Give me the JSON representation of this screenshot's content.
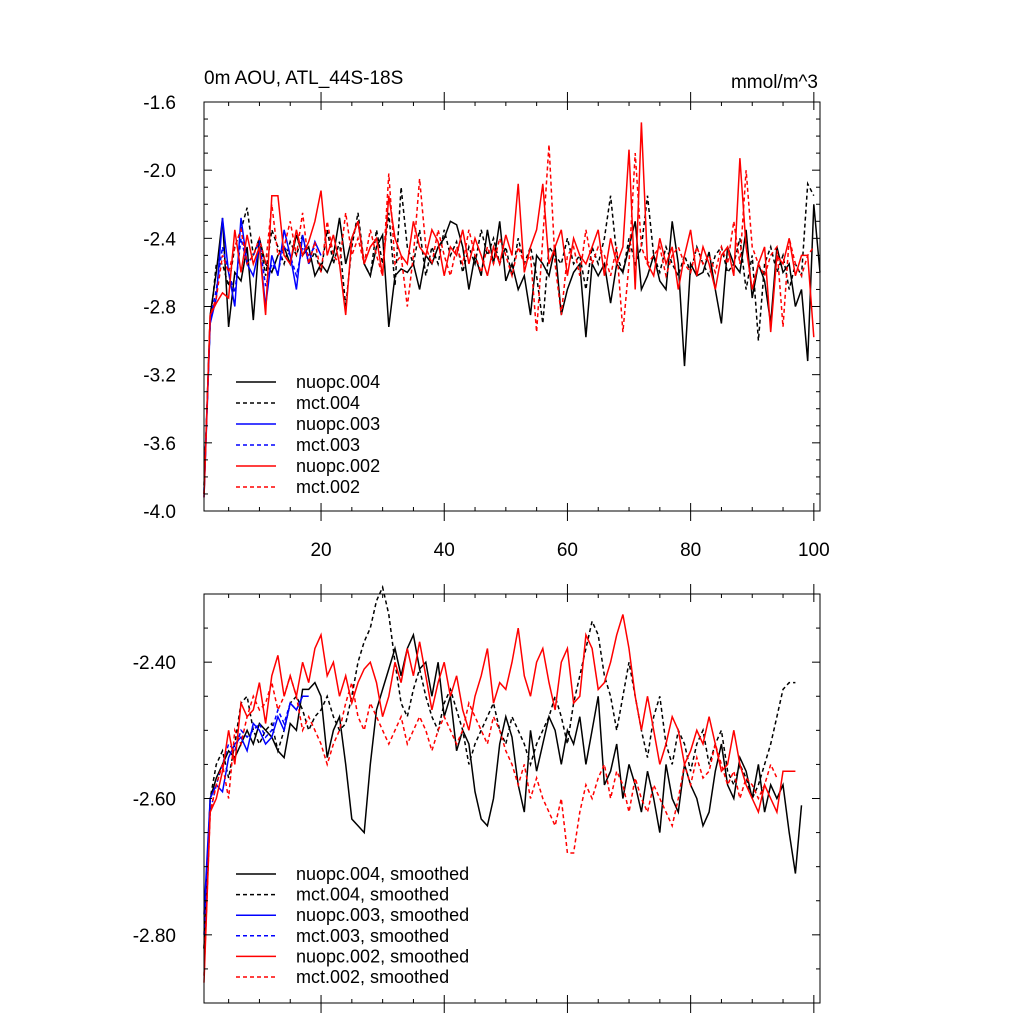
{
  "chart_data": [
    {
      "type": "line",
      "title": "0m AOU, ATL_44S-18S",
      "units": "mmol/m^3",
      "xlim": [
        1,
        101
      ],
      "ylim": [
        -4.0,
        -1.6
      ],
      "xticks": [
        20,
        40,
        60,
        80,
        100
      ],
      "xtick_labels": [
        "20",
        "40",
        "60",
        "80",
        "100"
      ],
      "yticks": [
        -1.6,
        -2.0,
        -2.4,
        -2.8,
        -3.2,
        -3.6,
        -4.0
      ],
      "ytick_labels": [
        "-1.6",
        "-2.0",
        "-2.4",
        "-2.8",
        "-3.2",
        "-3.6",
        "-4.0"
      ],
      "legend_position": "bottom-left",
      "series": [
        {
          "name": "nuopc.004",
          "color": "#000000",
          "dash": "solid",
          "x_start": 1,
          "values": [
            -3.9,
            -2.85,
            -2.6,
            -2.28,
            -2.92,
            -2.6,
            -2.65,
            -2.45,
            -2.88,
            -2.4,
            -2.55,
            -2.6,
            -2.5,
            -2.45,
            -2.55,
            -2.38,
            -2.5,
            -2.45,
            -2.62,
            -2.55,
            -2.6,
            -2.5,
            -2.28,
            -2.55,
            -2.4,
            -2.3,
            -2.55,
            -2.62,
            -2.45,
            -2.38,
            -2.92,
            -2.62,
            -2.58,
            -2.6,
            -2.55,
            -2.7,
            -2.5,
            -2.55,
            -2.45,
            -2.4,
            -2.3,
            -2.32,
            -2.45,
            -2.7,
            -2.5,
            -2.62,
            -2.35,
            -2.55,
            -2.3,
            -2.65,
            -2.55,
            -2.7,
            -2.62,
            -2.85,
            -2.5,
            -2.55,
            -2.62,
            -2.45,
            -2.85,
            -2.7,
            -2.6,
            -2.55,
            -2.98,
            -2.55,
            -2.62,
            -2.55,
            -2.78,
            -2.55,
            -2.6,
            -2.45,
            -2.3,
            -2.7,
            -2.62,
            -2.5,
            -2.65,
            -2.7,
            -2.3,
            -2.55,
            -3.15,
            -2.55,
            -2.62,
            -2.6,
            -2.48,
            -2.7,
            -2.9,
            -2.45,
            -2.55,
            -2.6,
            -2.35,
            -2.75,
            -2.55,
            -2.65,
            -2.9,
            -2.45,
            -2.6,
            -2.55,
            -2.8,
            -2.7,
            -3.12,
            -2.2,
            -2.6
          ]
        },
        {
          "name": "mct.004",
          "color": "#000000",
          "dash": "dashed",
          "x_start": 1,
          "values": [
            -3.85,
            -2.9,
            -2.55,
            -2.55,
            -2.68,
            -2.45,
            -2.35,
            -2.22,
            -2.5,
            -2.4,
            -2.62,
            -2.35,
            -2.45,
            -2.55,
            -2.42,
            -2.5,
            -2.38,
            -2.55,
            -2.48,
            -2.6,
            -2.35,
            -2.55,
            -2.42,
            -2.8,
            -2.45,
            -2.25,
            -2.55,
            -2.62,
            -2.35,
            -2.55,
            -2.25,
            -2.68,
            -2.1,
            -2.45,
            -2.55,
            -2.35,
            -2.62,
            -2.45,
            -2.55,
            -2.35,
            -2.5,
            -2.42,
            -2.6,
            -2.45,
            -2.55,
            -2.35,
            -2.5,
            -2.4,
            -2.55,
            -2.45,
            -2.62,
            -2.4,
            -2.55,
            -2.45,
            -2.62,
            -2.9,
            -2.45,
            -2.5,
            -2.55,
            -2.4,
            -2.55,
            -2.5,
            -2.7,
            -2.45,
            -2.55,
            -2.4,
            -2.15,
            -2.5,
            -2.6,
            -2.4,
            -2.55,
            -2.45,
            -2.15,
            -2.5,
            -2.6,
            -2.45,
            -2.55,
            -2.62,
            -2.5,
            -2.6,
            -2.45,
            -2.55,
            -2.62,
            -2.5,
            -2.45,
            -2.6,
            -2.55,
            -2.4,
            -2.7,
            -2.5,
            -3.0,
            -2.55,
            -2.45,
            -2.6,
            -2.5,
            -2.7,
            -2.55,
            -2.62,
            -2.08,
            -2.15
          ]
        },
        {
          "name": "nuopc.003",
          "color": "#0000ff",
          "dash": "solid",
          "x_start": 1,
          "values": [
            -3.92,
            -2.9,
            -2.75,
            -2.28,
            -2.6,
            -2.8,
            -2.28,
            -2.55,
            -2.62,
            -2.45,
            -2.8,
            -2.5,
            -2.62,
            -2.35,
            -2.5,
            -2.7,
            -2.38,
            -2.55,
            -2.42,
            -2.5
          ]
        },
        {
          "name": "mct.003",
          "color": "#0000ff",
          "dash": "dashed",
          "x_start": 1,
          "values": [
            -3.88,
            -2.88,
            -2.7,
            -2.45,
            -2.6,
            -2.72,
            -2.4,
            -2.55,
            -2.5,
            -2.42,
            -2.68,
            -2.55,
            -2.6,
            -2.45,
            -2.5,
            -2.62,
            -2.45,
            -2.5,
            -2.45
          ]
        },
        {
          "name": "nuopc.002",
          "color": "#ff0000",
          "dash": "solid",
          "x_start": 1,
          "values": [
            -3.92,
            -2.85,
            -2.78,
            -2.72,
            -2.75,
            -2.35,
            -2.6,
            -2.38,
            -2.55,
            -2.45,
            -2.85,
            -2.15,
            -2.15,
            -2.5,
            -2.55,
            -2.35,
            -2.5,
            -2.42,
            -2.3,
            -2.12,
            -2.5,
            -2.38,
            -2.55,
            -2.85,
            -2.4,
            -2.3,
            -2.55,
            -2.45,
            -2.4,
            -2.62,
            -2.15,
            -2.4,
            -2.5,
            -2.55,
            -2.3,
            -2.45,
            -2.5,
            -2.35,
            -2.42,
            -2.62,
            -2.45,
            -2.5,
            -2.35,
            -2.55,
            -2.4,
            -2.5,
            -2.62,
            -2.45,
            -2.55,
            -2.38,
            -2.5,
            -2.08,
            -2.6,
            -2.45,
            -2.35,
            -2.08,
            -2.55,
            -2.45,
            -2.35,
            -2.62,
            -2.4,
            -2.5,
            -2.55,
            -2.45,
            -2.35,
            -2.62,
            -2.4,
            -2.55,
            -2.45,
            -1.88,
            -2.7,
            -1.72,
            -2.55,
            -2.62,
            -2.4,
            -2.55,
            -2.45,
            -2.7,
            -2.5,
            -2.35,
            -2.62,
            -2.45,
            -2.55,
            -2.7,
            -2.5,
            -2.45,
            -2.62,
            -1.93,
            -2.45,
            -2.7,
            -2.55,
            -2.45,
            -2.95,
            -2.5,
            -2.55,
            -2.4,
            -2.62,
            -2.5,
            -2.5,
            -2.98
          ]
        },
        {
          "name": "mct.002",
          "color": "#ff0000",
          "dash": "dashed",
          "x_start": 1,
          "values": [
            -3.9,
            -2.85,
            -2.75,
            -2.5,
            -2.6,
            -2.45,
            -2.35,
            -2.55,
            -2.5,
            -2.4,
            -2.55,
            -2.2,
            -2.5,
            -2.45,
            -2.3,
            -2.5,
            -2.25,
            -2.55,
            -2.42,
            -2.6,
            -2.3,
            -2.5,
            -2.55,
            -2.25,
            -2.5,
            -2.4,
            -2.55,
            -2.35,
            -2.5,
            -2.62,
            -2.02,
            -2.55,
            -2.5,
            -2.8,
            -2.5,
            -2.05,
            -2.45,
            -2.55,
            -2.35,
            -2.5,
            -2.62,
            -2.45,
            -2.55,
            -2.35,
            -2.5,
            -2.6,
            -2.45,
            -2.55,
            -2.4,
            -2.5,
            -2.62,
            -2.45,
            -2.55,
            -2.5,
            -2.95,
            -2.4,
            -1.85,
            -2.55,
            -2.85,
            -2.5,
            -2.45,
            -2.62,
            -2.35,
            -2.55,
            -2.45,
            -2.5,
            -2.62,
            -2.45,
            -2.95,
            -2.55,
            -1.9,
            -2.45,
            -2.55,
            -2.5,
            -2.45,
            -2.62,
            -2.5,
            -2.45,
            -2.55,
            -2.6,
            -2.45,
            -2.55,
            -2.5,
            -2.6,
            -2.45,
            -2.55,
            -2.3,
            -2.55,
            -2.0,
            -2.45,
            -2.55,
            -2.62,
            -2.5,
            -2.45,
            -2.92,
            -2.4,
            -2.55,
            -2.62,
            -2.5,
            -2.45
          ]
        }
      ],
      "legend": [
        "nuopc.004",
        "mct.004",
        "nuopc.003",
        "mct.003",
        "nuopc.002",
        "mct.002"
      ]
    },
    {
      "type": "line",
      "title": "",
      "xlim": [
        1,
        101
      ],
      "ylim": [
        -2.9,
        -2.3
      ],
      "yticks": [
        -2.4,
        -2.6,
        -2.8
      ],
      "ytick_labels": [
        "-2.40",
        "-2.60",
        "-2.80"
      ],
      "legend_position": "bottom-left",
      "series": [
        {
          "name": "nuopc.004, smoothed",
          "color": "#000000",
          "dash": "solid",
          "x_start": 1,
          "values": [
            -2.82,
            -2.6,
            -2.57,
            -2.55,
            -2.53,
            -2.54,
            -2.52,
            -2.5,
            -2.52,
            -2.49,
            -2.5,
            -2.51,
            -2.53,
            -2.54,
            -2.49,
            -2.5,
            -2.44,
            -2.44,
            -2.43,
            -2.45,
            -2.54,
            -2.5,
            -2.48,
            -2.55,
            -2.63,
            -2.64,
            -2.65,
            -2.55,
            -2.47,
            -2.44,
            -2.41,
            -2.38,
            -2.42,
            -2.38,
            -2.36,
            -2.41,
            -2.4,
            -2.45,
            -2.4,
            -2.48,
            -2.45,
            -2.53,
            -2.5,
            -2.52,
            -2.59,
            -2.63,
            -2.64,
            -2.6,
            -2.52,
            -2.48,
            -2.51,
            -2.58,
            -2.62,
            -2.5,
            -2.56,
            -2.52,
            -2.48,
            -2.5,
            -2.55,
            -2.5,
            -2.52,
            -2.48,
            -2.55,
            -2.5,
            -2.45,
            -2.58,
            -2.56,
            -2.52,
            -2.6,
            -2.55,
            -2.58,
            -2.62,
            -2.56,
            -2.6,
            -2.65,
            -2.55,
            -2.6,
            -2.62,
            -2.55,
            -2.58,
            -2.6,
            -2.64,
            -2.62,
            -2.56,
            -2.52,
            -2.58,
            -2.6,
            -2.54,
            -2.56,
            -2.6,
            -2.55,
            -2.62,
            -2.58,
            -2.6,
            -2.58,
            -2.65,
            -2.71,
            -2.61
          ]
        },
        {
          "name": "mct.004, smoothed",
          "color": "#000000",
          "dash": "dashed",
          "x_start": 1,
          "values": [
            -2.82,
            -2.6,
            -2.55,
            -2.53,
            -2.57,
            -2.52,
            -2.46,
            -2.45,
            -2.5,
            -2.52,
            -2.5,
            -2.49,
            -2.53,
            -2.5,
            -2.46,
            -2.45,
            -2.47,
            -2.5,
            -2.48,
            -2.47,
            -2.45,
            -2.48,
            -2.5,
            -2.49,
            -2.45,
            -2.4,
            -2.37,
            -2.35,
            -2.31,
            -2.29,
            -2.33,
            -2.4,
            -2.46,
            -2.48,
            -2.44,
            -2.41,
            -2.45,
            -2.48,
            -2.5,
            -2.46,
            -2.44,
            -2.47,
            -2.5,
            -2.55,
            -2.52,
            -2.5,
            -2.48,
            -2.46,
            -2.5,
            -2.52,
            -2.48,
            -2.5,
            -2.52,
            -2.55,
            -2.52,
            -2.5,
            -2.48,
            -2.45,
            -2.48,
            -2.52,
            -2.46,
            -2.42,
            -2.38,
            -2.34,
            -2.36,
            -2.42,
            -2.45,
            -2.5,
            -2.45,
            -2.4,
            -2.45,
            -2.5,
            -2.54,
            -2.48,
            -2.45,
            -2.52,
            -2.55,
            -2.5,
            -2.52,
            -2.56,
            -2.52,
            -2.5,
            -2.55,
            -2.52,
            -2.5,
            -2.56,
            -2.58,
            -2.55,
            -2.57,
            -2.6,
            -2.58,
            -2.55,
            -2.52,
            -2.48,
            -2.44,
            -2.43,
            -2.43
          ]
        },
        {
          "name": "nuopc.003, smoothed",
          "color": "#0000ff",
          "dash": "solid",
          "x_start": 1,
          "values": [
            -2.77,
            -2.6,
            -2.58,
            -2.59,
            -2.54,
            -2.52,
            -2.51,
            -2.53,
            -2.49,
            -2.5,
            -2.52,
            -2.51,
            -2.48,
            -2.5,
            -2.46,
            -2.47,
            -2.45,
            -2.45
          ]
        },
        {
          "name": "mct.003, smoothed",
          "color": "#0000ff",
          "dash": "dashed",
          "x_start": 1,
          "values": [
            -2.8,
            -2.62,
            -2.58,
            -2.55,
            -2.52,
            -2.53,
            -2.5,
            -2.51,
            -2.5,
            -2.49,
            -2.51,
            -2.5,
            -2.47,
            -2.49,
            -2.46,
            -2.47,
            -2.45
          ]
        },
        {
          "name": "nuopc.002, smoothed",
          "color": "#ff0000",
          "dash": "solid",
          "x_start": 1,
          "values": [
            -2.87,
            -2.62,
            -2.6,
            -2.56,
            -2.5,
            -2.55,
            -2.46,
            -2.48,
            -2.47,
            -2.43,
            -2.49,
            -2.42,
            -2.39,
            -2.45,
            -2.42,
            -2.45,
            -2.4,
            -2.43,
            -2.38,
            -2.36,
            -2.42,
            -2.4,
            -2.45,
            -2.42,
            -2.46,
            -2.43,
            -2.41,
            -2.4,
            -2.43,
            -2.48,
            -2.45,
            -2.4,
            -2.43,
            -2.38,
            -2.42,
            -2.37,
            -2.42,
            -2.47,
            -2.43,
            -2.4,
            -2.45,
            -2.42,
            -2.47,
            -2.5,
            -2.45,
            -2.42,
            -2.38,
            -2.46,
            -2.43,
            -2.44,
            -2.4,
            -2.35,
            -2.42,
            -2.45,
            -2.4,
            -2.38,
            -2.43,
            -2.47,
            -2.4,
            -2.38,
            -2.46,
            -2.45,
            -2.36,
            -2.38,
            -2.44,
            -2.43,
            -2.4,
            -2.36,
            -2.33,
            -2.38,
            -2.45,
            -2.5,
            -2.45,
            -2.5,
            -2.55,
            -2.52,
            -2.48,
            -2.5,
            -2.55,
            -2.53,
            -2.5,
            -2.52,
            -2.48,
            -2.52,
            -2.56,
            -2.55,
            -2.5,
            -2.55,
            -2.58,
            -2.6,
            -2.62,
            -2.58,
            -2.6,
            -2.62,
            -2.56,
            -2.56,
            -2.56
          ]
        },
        {
          "name": "mct.002, smoothed",
          "color": "#ff0000",
          "dash": "dashed",
          "x_start": 1,
          "values": [
            -2.86,
            -2.62,
            -2.58,
            -2.55,
            -2.6,
            -2.5,
            -2.52,
            -2.48,
            -2.45,
            -2.47,
            -2.46,
            -2.43,
            -2.47,
            -2.45,
            -2.42,
            -2.45,
            -2.5,
            -2.48,
            -2.5,
            -2.52,
            -2.55,
            -2.52,
            -2.5,
            -2.46,
            -2.43,
            -2.48,
            -2.5,
            -2.46,
            -2.48,
            -2.5,
            -2.52,
            -2.5,
            -2.48,
            -2.52,
            -2.5,
            -2.48,
            -2.5,
            -2.53,
            -2.5,
            -2.48,
            -2.5,
            -2.52,
            -2.5,
            -2.46,
            -2.48,
            -2.5,
            -2.52,
            -2.48,
            -2.5,
            -2.53,
            -2.55,
            -2.58,
            -2.55,
            -2.6,
            -2.57,
            -2.6,
            -2.62,
            -2.64,
            -2.6,
            -2.68,
            -2.68,
            -2.62,
            -2.58,
            -2.6,
            -2.57,
            -2.55,
            -2.6,
            -2.56,
            -2.58,
            -2.62,
            -2.57,
            -2.6,
            -2.62,
            -2.58,
            -2.6,
            -2.62,
            -2.64,
            -2.6,
            -2.55,
            -2.58,
            -2.54,
            -2.57,
            -2.56,
            -2.52,
            -2.55,
            -2.58,
            -2.56,
            -2.6,
            -2.57,
            -2.58,
            -2.6,
            -2.58,
            -2.55,
            -2.57
          ]
        }
      ],
      "legend": [
        "nuopc.004, smoothed",
        "mct.004, smoothed",
        "nuopc.003, smoothed",
        "mct.003, smoothed",
        "nuopc.002, smoothed",
        "mct.002, smoothed"
      ]
    }
  ]
}
